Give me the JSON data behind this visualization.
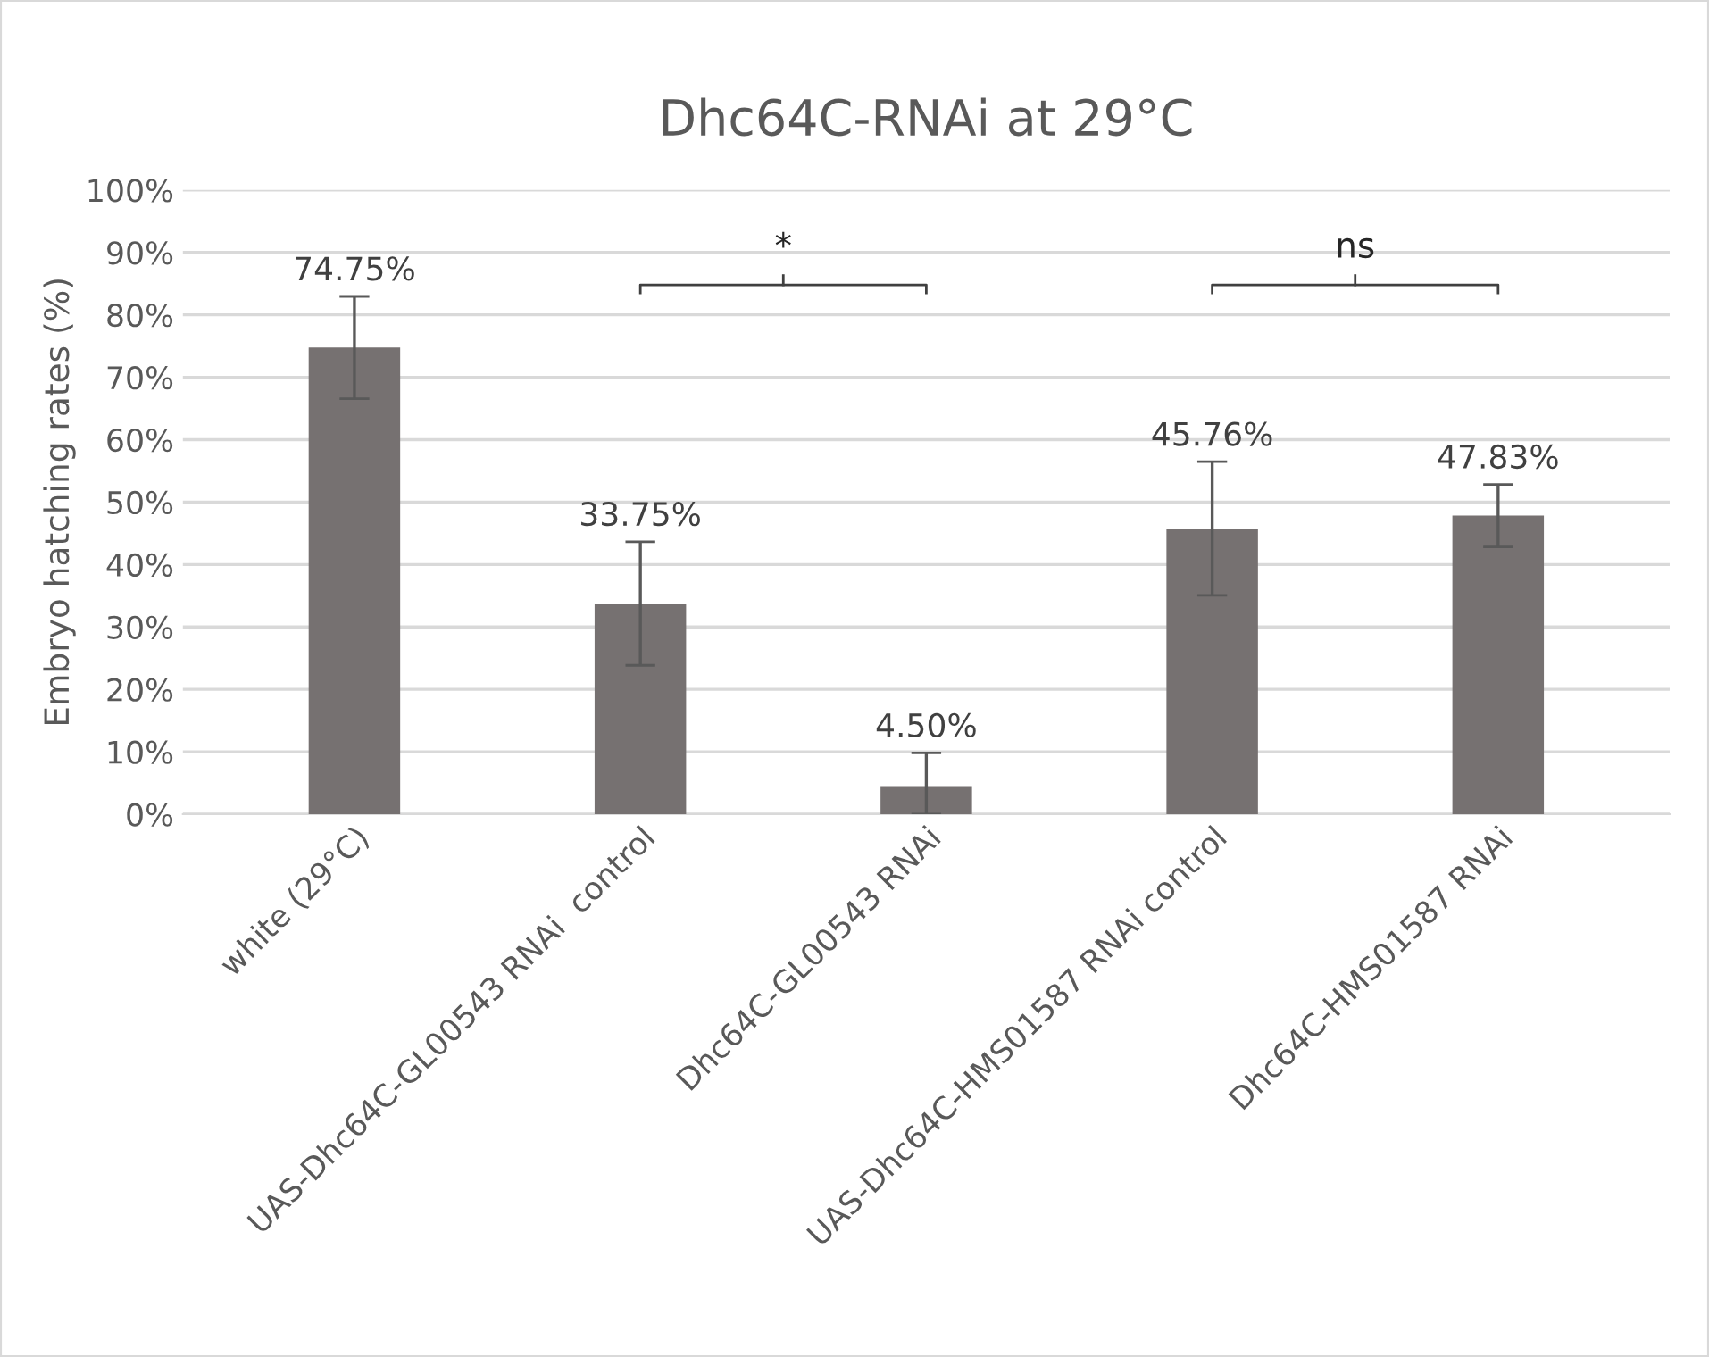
{
  "chart_data": {
    "type": "bar",
    "title": "Dhc64C-RNAi at 29°C",
    "ylabel": "Embryo hatching rates (%)",
    "categories": [
      "white (29°C)",
      "UAS-Dhc64C-GL00543 RNAi  control",
      "Dhc64C-GL00543 RNAi",
      "UAS-Dhc64C-HMS01587 RNAi control",
      "Dhc64C-HMS01587 RNAi"
    ],
    "values": [
      74.75,
      33.75,
      4.5,
      45.76,
      47.83
    ],
    "errors": [
      8.2,
      9.9,
      [
        0,
        9.8
      ],
      10.7,
      5.0
    ],
    "value_labels": [
      "74.75%",
      "33.75%",
      "4.50%",
      "45.76%",
      "47.83%"
    ],
    "color": "#767171",
    "ylim": [
      0,
      100
    ],
    "yticks": [
      {
        "value": 0,
        "label": "0%"
      },
      {
        "value": 10,
        "label": "10%"
      },
      {
        "value": 20,
        "label": "20%"
      },
      {
        "value": 30,
        "label": "30%"
      },
      {
        "value": 40,
        "label": "40%"
      },
      {
        "value": 50,
        "label": "50%"
      },
      {
        "value": 60,
        "label": "60%"
      },
      {
        "value": 70,
        "label": "70%"
      },
      {
        "value": 80,
        "label": "80%"
      },
      {
        "value": 90,
        "label": "90%"
      },
      {
        "value": 100,
        "label": "100%"
      }
    ],
    "grid": "y",
    "annotations": [
      "*",
      "ns"
    ]
  }
}
